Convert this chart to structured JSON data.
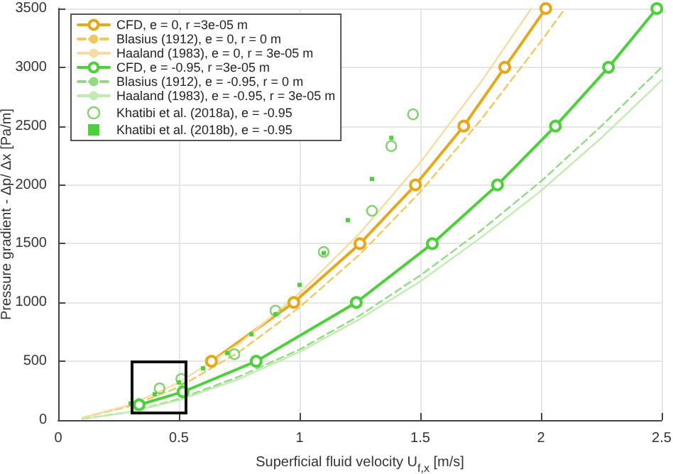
{
  "chart_data": {
    "type": "line",
    "xlabel": "Superficial fluid velocity U$_{f,x}$ [m/s]",
    "ylabel": "Pressure gradient - Δp/ Δx [Pa/m]",
    "xlim": [
      0,
      2.5
    ],
    "xticks": [
      0,
      0.5,
      1,
      1.5,
      2,
      2.5
    ],
    "ylim": [
      0,
      3500
    ],
    "yticks": [
      0,
      500,
      1000,
      1500,
      2000,
      2500,
      3000,
      3500
    ],
    "grid": true,
    "legend": "top left",
    "series": [
      {
        "name": "CFD, e = 0, r =3e-05 m",
        "color": "#e6a817",
        "marker": "circle",
        "line_style": "solid",
        "x": [
          0.635,
          0.976,
          1.25,
          1.48,
          1.68,
          1.85,
          2.02
        ],
        "values": [
          500,
          1000,
          1500,
          2000,
          2500,
          3000,
          3500
        ]
      },
      {
        "name": "Blasius (1912), e = 0, r = 0 m",
        "color": "#f0c860",
        "marker": "none",
        "line_style": "dashed",
        "x": [
          0.1,
          0.3,
          0.5,
          0.75,
          1,
          1.25,
          1.5,
          1.75,
          2,
          2.1
        ],
        "values": [
          20,
          120,
          280,
          580,
          960,
          1410,
          1940,
          2550,
          3220,
          3500
        ]
      },
      {
        "name": "Haaland (1983), e = 0, r = 3e-05 m",
        "color": "#f5dca0",
        "marker": "none",
        "line_style": "solid",
        "x": [
          0.1,
          0.3,
          0.5,
          0.75,
          1,
          1.25,
          1.5,
          1.75,
          1.96
        ],
        "values": [
          20,
          130,
          320,
          650,
          1080,
          1590,
          2190,
          2870,
          3500
        ]
      },
      {
        "name": "CFD, e = -0.95, r =3e-05 m",
        "color": "#4cd13a",
        "marker": "circle",
        "line_style": "solid",
        "x": [
          0.335,
          0.517,
          0.82,
          1.235,
          1.55,
          1.82,
          2.06,
          2.28,
          2.48
        ],
        "values": [
          130,
          240,
          500,
          1000,
          1500,
          2000,
          2500,
          3000,
          3500
        ]
      },
      {
        "name": "Blasius (1912), e = -0.95, r = 0 m",
        "color": "#8fdc80",
        "marker": "none",
        "line_style": "dashed",
        "x": [
          0.1,
          0.3,
          0.5,
          0.75,
          1,
          1.25,
          1.5,
          1.75,
          2,
          2.25,
          2.5
        ],
        "values": [
          10,
          70,
          180,
          370,
          600,
          890,
          1230,
          1610,
          2030,
          2500,
          3000
        ]
      },
      {
        "name": "Haaland (1983), e = -0.95, r = 3e-05 m",
        "color": "#c0ecb0",
        "marker": "none",
        "line_style": "solid",
        "x": [
          0.1,
          0.3,
          0.5,
          0.75,
          1,
          1.25,
          1.5,
          1.75,
          2,
          2.25,
          2.5
        ],
        "values": [
          10,
          70,
          170,
          350,
          580,
          860,
          1180,
          1550,
          1950,
          2400,
          2890
        ]
      },
      {
        "name": "Khatibi et al. (2018a), e = -0.95",
        "type": "scatter",
        "color": "#7fd470",
        "marker": "circle",
        "x": [
          0.42,
          0.51,
          0.73,
          0.9,
          1.1,
          1.3,
          1.38,
          1.47
        ],
        "values": [
          270,
          350,
          560,
          930,
          1430,
          1780,
          2330,
          2600
        ]
      },
      {
        "name": "Khatibi et al. (2018b), e = -0.95",
        "type": "scatter",
        "color": "#4cd13a",
        "marker": "square",
        "x": [
          0.3,
          0.4,
          0.5,
          0.6,
          0.7,
          0.8,
          0.9,
          1.0,
          1.1,
          1.2,
          1.3,
          1.38
        ],
        "values": [
          140,
          220,
          320,
          440,
          570,
          730,
          900,
          1150,
          1420,
          1700,
          2050,
          2400
        ]
      }
    ]
  }
}
